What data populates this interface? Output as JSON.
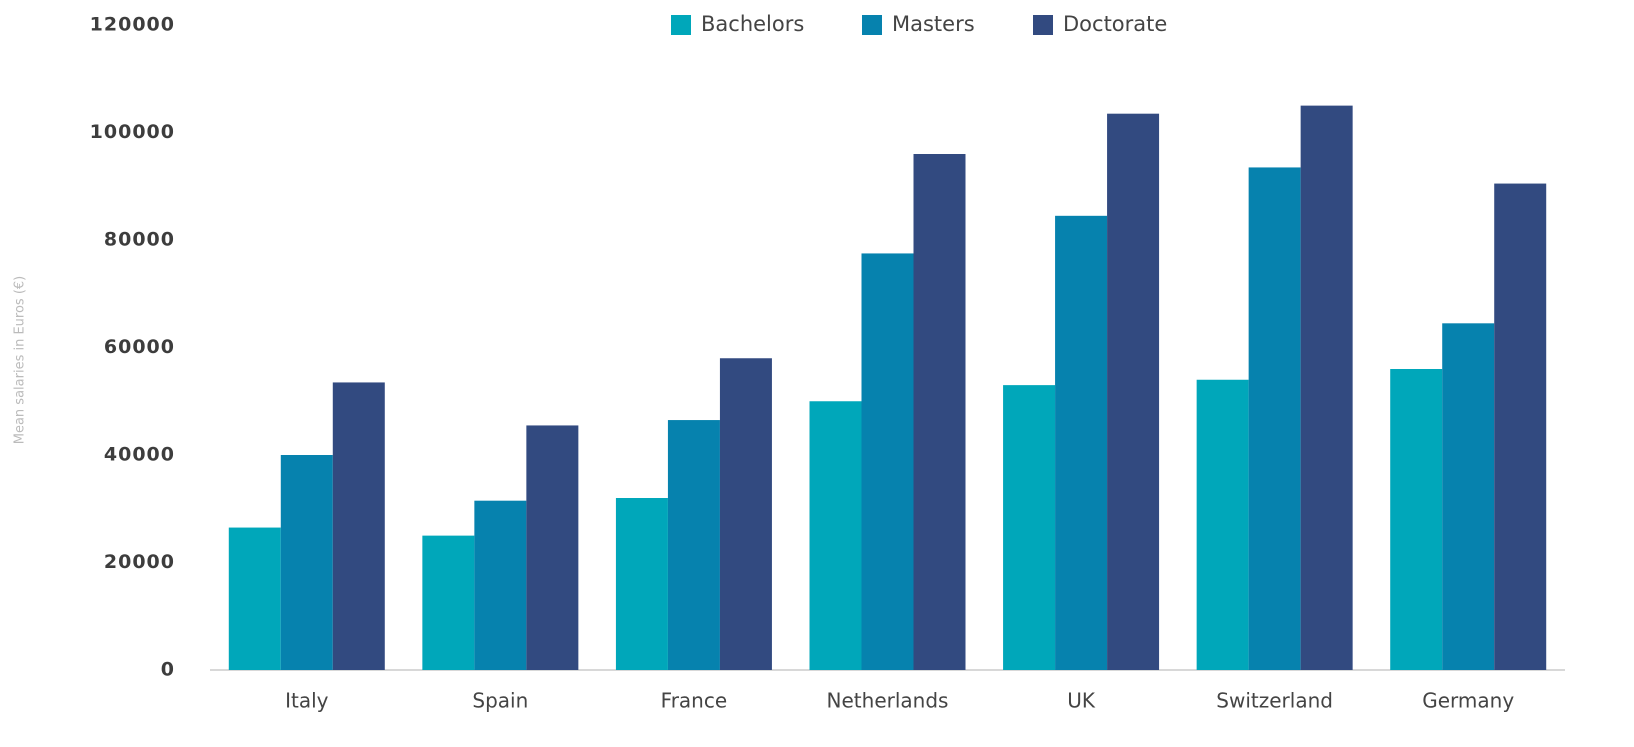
{
  "chart_data": {
    "type": "bar",
    "y_axis_label": "Mean salaries in Euros (€)",
    "categories": [
      "Italy",
      "Spain",
      "France",
      "Netherlands",
      "UK",
      "Switzerland",
      "Germany"
    ],
    "series": [
      {
        "name": "Bachelors",
        "color": "#00a7ba",
        "values": [
          26500,
          25000,
          32000,
          50000,
          53000,
          54000,
          56000
        ]
      },
      {
        "name": "Masters",
        "color": "#0682ae",
        "values": [
          40000,
          31500,
          46500,
          77500,
          84500,
          93500,
          64500
        ]
      },
      {
        "name": "Doctorate",
        "color": "#324a80",
        "values": [
          53500,
          45500,
          58000,
          96000,
          103500,
          105000,
          90500
        ]
      }
    ],
    "ylim": [
      0,
      120000
    ],
    "yticks": [
      0,
      20000,
      40000,
      60000,
      80000,
      100000,
      120000
    ],
    "grid": false
  }
}
